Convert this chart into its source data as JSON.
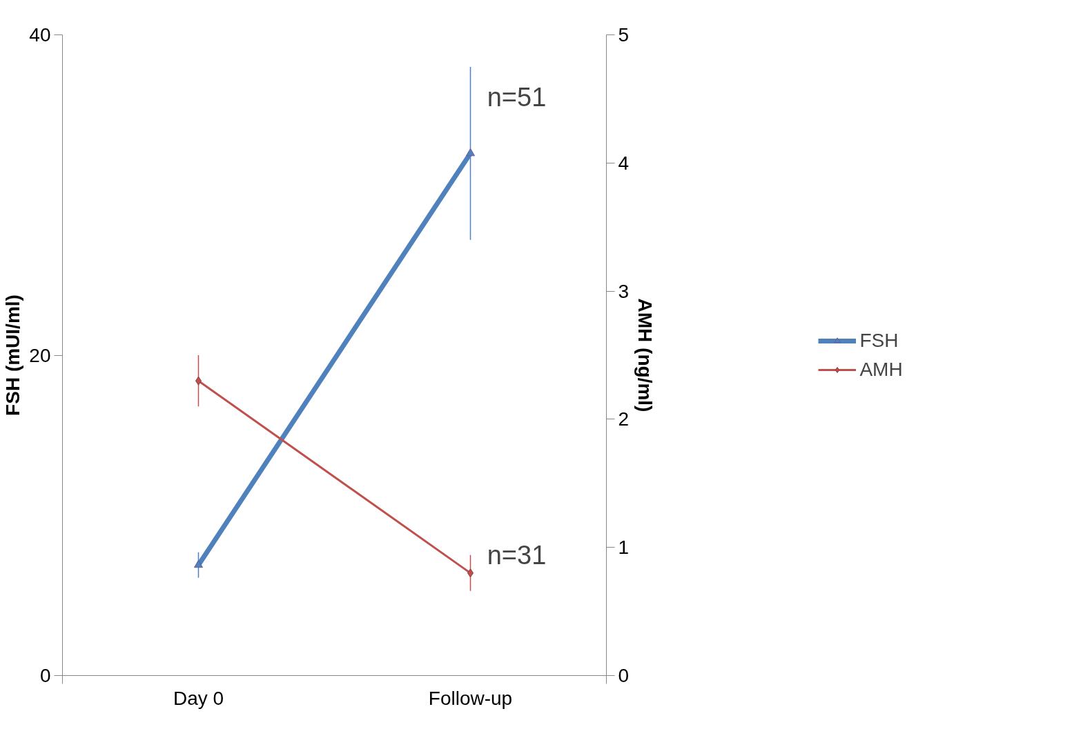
{
  "chart_data": {
    "type": "line",
    "categories": [
      "Day 0",
      "Follow-up"
    ],
    "ylabel": "FSH (mUI/ml)",
    "y2label": "AMH (ng/ml)",
    "ylim": [
      0,
      40
    ],
    "yticks": [
      0,
      20,
      40
    ],
    "y2lim": [
      0,
      5
    ],
    "y2ticks": [
      0,
      1,
      2,
      3,
      4,
      5
    ],
    "series": [
      {
        "name": "FSH",
        "color": "#4f81bd",
        "values": [
          6.9,
          32.6
        ],
        "errors": [
          0.8,
          5.4
        ],
        "marker": "triangle"
      },
      {
        "name": "AMH",
        "color": "#c0504d",
        "values": [
          2.3,
          0.8
        ],
        "errors": [
          0.2,
          0.14
        ],
        "marker": "diamond",
        "axis": "y2"
      }
    ],
    "annotations": [
      {
        "text": "n=51",
        "x": "Follow-up",
        "y": 36.1
      },
      {
        "text": "n=31",
        "x": "Follow-up",
        "y": 7.5
      }
    ],
    "grid": false,
    "legend": "right"
  }
}
